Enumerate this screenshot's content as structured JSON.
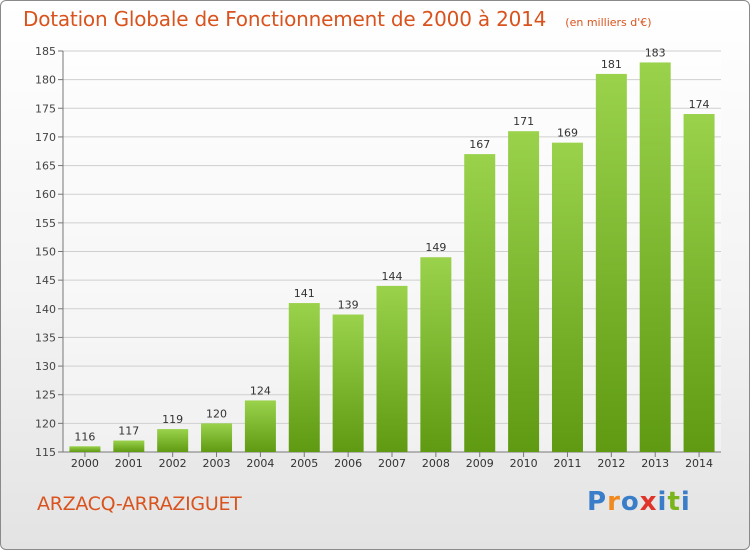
{
  "header": {
    "title": "Dotation Globale de Fonctionnement de 2000 à 2014",
    "subtitle": "(en milliers d'€)"
  },
  "footer": {
    "place": "ARZACQ-ARRAZIGUET",
    "logo": "Proxiti"
  },
  "colors": {
    "title": "#d9531e",
    "bar_light": "#9ad24c",
    "bar_dark": "#5f9a12",
    "grid": "#cfcfcf",
    "logo": [
      "#3a7dc9",
      "#f08a1f",
      "#3a7dc9",
      "#e0342a",
      "#3a7dc9",
      "#7ab51d",
      "#3a7dc9"
    ]
  },
  "chart_data": {
    "type": "bar",
    "title": "Dotation Globale de Fonctionnement de 2000 à 2014",
    "subtitle": "(en milliers d'€)",
    "xlabel": "",
    "ylabel": "",
    "categories": [
      "2000",
      "2001",
      "2002",
      "2003",
      "2004",
      "2005",
      "2006",
      "2007",
      "2008",
      "2009",
      "2010",
      "2011",
      "2012",
      "2013",
      "2014"
    ],
    "values": [
      116,
      117,
      119,
      120,
      124,
      141,
      139,
      144,
      149,
      167,
      171,
      169,
      181,
      183,
      174
    ],
    "ylim": [
      115,
      185
    ],
    "yticks": [
      115,
      120,
      125,
      130,
      135,
      140,
      145,
      150,
      155,
      160,
      165,
      170,
      175,
      180,
      185
    ],
    "grid": true,
    "legend": "none"
  }
}
